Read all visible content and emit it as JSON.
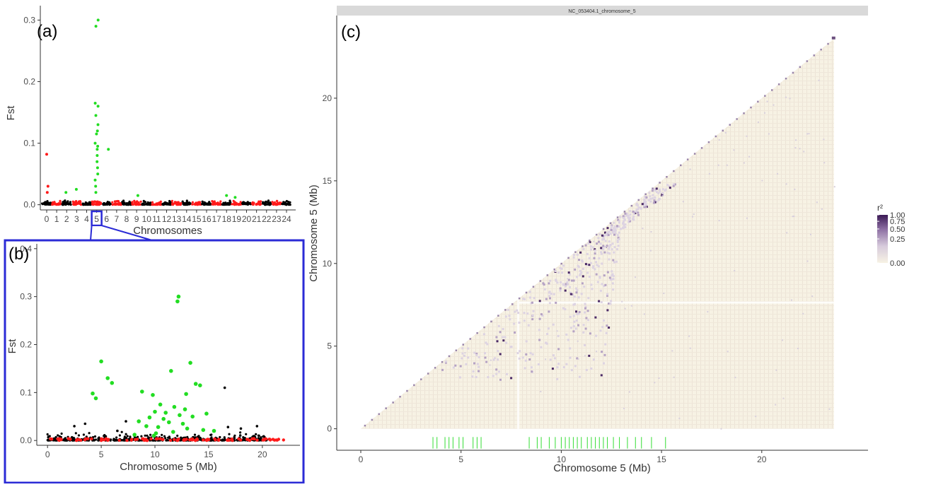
{
  "chart_data": [
    {
      "panel": "(a)",
      "type": "scatter",
      "ylabel": "Fst",
      "xlabel": "Chromosomes",
      "categories": [
        "0",
        "1",
        "2",
        "3",
        "4",
        "5",
        "6",
        "7",
        "8",
        "9",
        "10",
        "11",
        "12",
        "13",
        "14",
        "15",
        "16",
        "17",
        "18",
        "19",
        "20",
        "21",
        "22",
        "23",
        "24"
      ],
      "yticks": [
        "0.0",
        "0.1",
        "0.2",
        "0.3"
      ],
      "ylim": [
        -0.005,
        0.32
      ],
      "highlight_category": "5",
      "colors": {
        "even": "#000000",
        "odd": "#ff1a1a",
        "outlier": "#22dd22"
      },
      "outlier_points": [
        {
          "chrom": 5,
          "fst": 0.3
        },
        {
          "chrom": 5,
          "fst": 0.29
        },
        {
          "chrom": 5,
          "fst": 0.165
        },
        {
          "chrom": 5,
          "fst": 0.16
        },
        {
          "chrom": 5,
          "fst": 0.145
        },
        {
          "chrom": 5,
          "fst": 0.13
        },
        {
          "chrom": 5,
          "fst": 0.12
        },
        {
          "chrom": 5,
          "fst": 0.115
        },
        {
          "chrom": 5,
          "fst": 0.1
        },
        {
          "chrom": 5,
          "fst": 0.095
        },
        {
          "chrom": 5,
          "fst": 0.09
        },
        {
          "chrom": 6,
          "fst": 0.09
        },
        {
          "chrom": 5,
          "fst": 0.08
        },
        {
          "chrom": 5,
          "fst": 0.07
        },
        {
          "chrom": 5,
          "fst": 0.06
        },
        {
          "chrom": 5,
          "fst": 0.05
        },
        {
          "chrom": 5,
          "fst": 0.04
        },
        {
          "chrom": 5,
          "fst": 0.03
        },
        {
          "chrom": 5,
          "fst": 0.02
        },
        {
          "chrom": 2,
          "fst": 0.02
        },
        {
          "chrom": 3,
          "fst": 0.025
        },
        {
          "chrom": 9,
          "fst": 0.015
        },
        {
          "chrom": 18,
          "fst": 0.015
        },
        {
          "chrom": 19,
          "fst": 0.012
        }
      ],
      "high_background_points": [
        {
          "chrom": 0,
          "fst": 0.082,
          "color": "odd"
        },
        {
          "chrom": 0,
          "fst": 0.03,
          "color": "odd"
        },
        {
          "chrom": 0,
          "fst": 0.02,
          "color": "odd"
        }
      ]
    },
    {
      "panel": "(b)",
      "type": "scatter",
      "ylabel": "Fst",
      "xlabel": "Chromosome 5 (Mb)",
      "xticks": [
        0,
        5,
        10,
        15,
        20
      ],
      "yticks": [
        "0.0",
        "0.1",
        "0.2",
        "0.3",
        "0.4"
      ],
      "xlim": [
        -1,
        23.5
      ],
      "ylim": [
        -0.01,
        0.41
      ],
      "colors": {
        "background": "#000000",
        "low": "#ff1a1a",
        "outlier": "#22dd22"
      },
      "outlier_points": [
        {
          "x": 12.2,
          "y": 0.3
        },
        {
          "x": 12.1,
          "y": 0.29
        },
        {
          "x": 5.0,
          "y": 0.165
        },
        {
          "x": 13.3,
          "y": 0.162
        },
        {
          "x": 11.5,
          "y": 0.145
        },
        {
          "x": 5.6,
          "y": 0.13
        },
        {
          "x": 6.0,
          "y": 0.12
        },
        {
          "x": 13.8,
          "y": 0.118
        },
        {
          "x": 14.2,
          "y": 0.115
        },
        {
          "x": 8.8,
          "y": 0.102
        },
        {
          "x": 4.2,
          "y": 0.098
        },
        {
          "x": 12.9,
          "y": 0.097
        },
        {
          "x": 9.8,
          "y": 0.095
        },
        {
          "x": 4.5,
          "y": 0.088
        },
        {
          "x": 10.5,
          "y": 0.075
        },
        {
          "x": 11.8,
          "y": 0.07
        },
        {
          "x": 12.8,
          "y": 0.065
        },
        {
          "x": 10.0,
          "y": 0.06
        },
        {
          "x": 11.0,
          "y": 0.058
        },
        {
          "x": 14.8,
          "y": 0.056
        },
        {
          "x": 12.3,
          "y": 0.053
        },
        {
          "x": 13.5,
          "y": 0.05
        },
        {
          "x": 9.5,
          "y": 0.048
        },
        {
          "x": 10.8,
          "y": 0.045
        },
        {
          "x": 8.5,
          "y": 0.04
        },
        {
          "x": 11.3,
          "y": 0.038
        },
        {
          "x": 12.6,
          "y": 0.035
        },
        {
          "x": 9.2,
          "y": 0.03
        },
        {
          "x": 10.3,
          "y": 0.028
        },
        {
          "x": 13.0,
          "y": 0.025
        },
        {
          "x": 14.5,
          "y": 0.022
        },
        {
          "x": 15.5,
          "y": 0.02
        },
        {
          "x": 11.7,
          "y": 0.018
        },
        {
          "x": 10.1,
          "y": 0.015
        },
        {
          "x": 8.1,
          "y": 0.012
        },
        {
          "x": 9.9,
          "y": 0.01
        }
      ],
      "high_background_points": [
        {
          "x": 16.5,
          "y": 0.11
        },
        {
          "x": 3.5,
          "y": 0.035
        },
        {
          "x": 2.5,
          "y": 0.03
        },
        {
          "x": 19.5,
          "y": 0.03
        },
        {
          "x": 7.3,
          "y": 0.04
        },
        {
          "x": 18.0,
          "y": 0.025
        },
        {
          "x": 16.8,
          "y": 0.028
        },
        {
          "x": 6.5,
          "y": 0.02
        }
      ]
    },
    {
      "panel": "(c)",
      "type": "heatmap",
      "strip_label": "NC_053404.1_chromosome_5",
      "xlabel": "Chromosome 5 (Mb)",
      "ylabel": "Chromosome 5 (Mb)",
      "xticks": [
        0,
        5,
        10,
        15,
        20
      ],
      "yticks": [
        0,
        5,
        10,
        15,
        20
      ],
      "xlim": [
        -1.2,
        25.3
      ],
      "ylim": [
        -1.3,
        25.0
      ],
      "max_position": 23.6,
      "legend": {
        "title": "r²",
        "breaks": [
          "1.00",
          "0.75",
          "0.50",
          "0.25",
          "0.00"
        ],
        "low_color": "#f7f2e4",
        "high_color": "#3b1a55"
      },
      "outlier_marker_positions": [
        3.6,
        3.8,
        4.2,
        4.4,
        4.6,
        4.9,
        5.1,
        5.6,
        5.8,
        6.0,
        8.4,
        8.8,
        9.0,
        9.4,
        9.7,
        10.0,
        10.2,
        10.4,
        10.6,
        10.8,
        11.0,
        11.3,
        11.5,
        11.7,
        11.9,
        12.1,
        12.3,
        12.6,
        12.9,
        13.3,
        13.7,
        14.0,
        14.5,
        15.2
      ],
      "marker_color": "#33dd33"
    }
  ]
}
